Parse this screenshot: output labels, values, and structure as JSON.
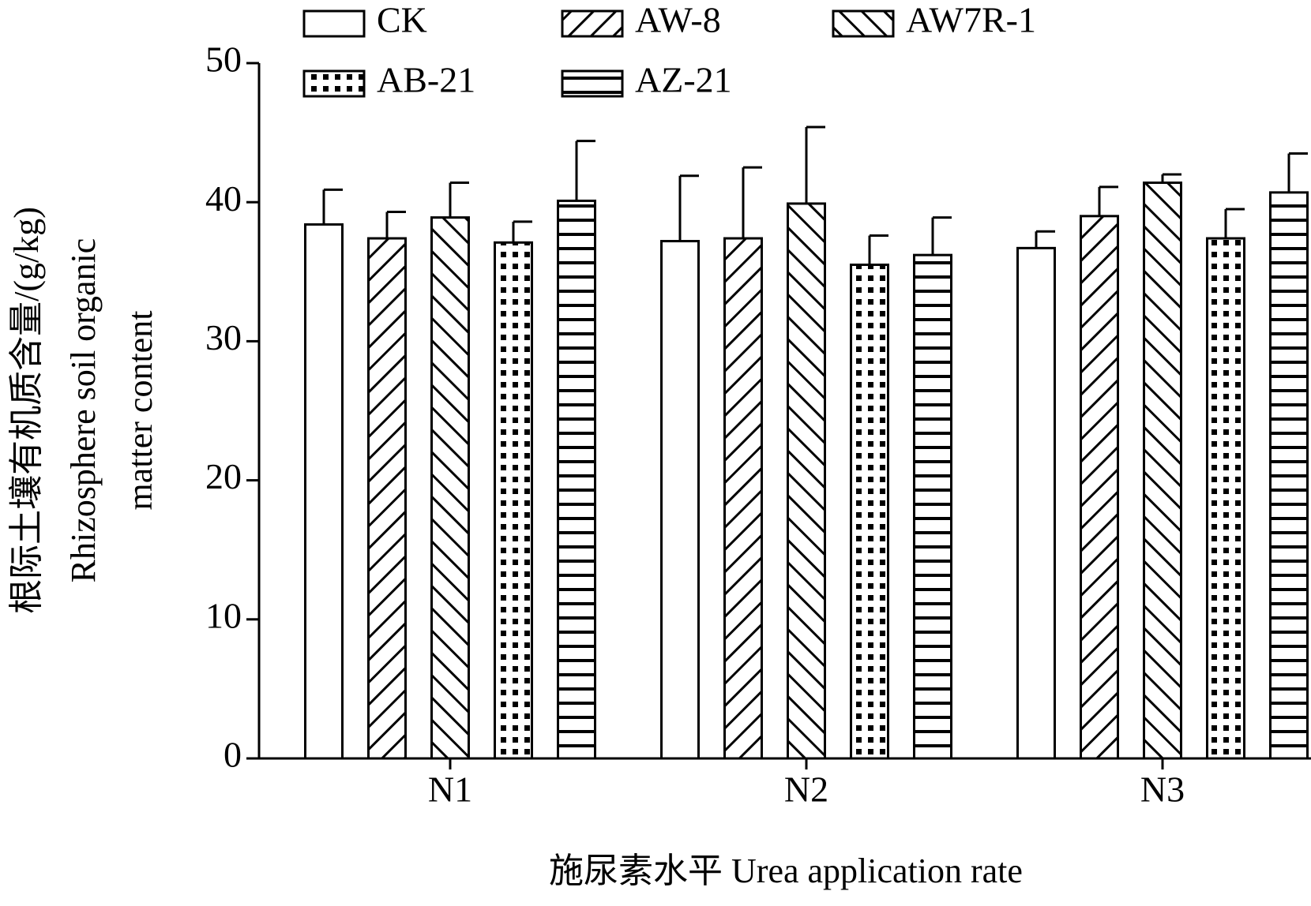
{
  "chart_data": {
    "type": "bar",
    "ylabel": [
      "根际土壤有机质含量/(g/kg)",
      "Rhizosphere soil organic",
      "matter content"
    ],
    "xlabel": "施尿素水平  Urea application rate",
    "categories": [
      "N1",
      "N2",
      "N3"
    ],
    "series": [
      {
        "name": "CK",
        "color": "#000000",
        "pattern": "none",
        "values": [
          38.4,
          37.2,
          36.7
        ],
        "errors": [
          2.5,
          4.7,
          1.2
        ]
      },
      {
        "name": "AW-8",
        "color": "#000000",
        "pattern": "diagonal-up",
        "values": [
          37.4,
          37.4,
          39.0
        ],
        "errors": [
          1.9,
          5.1,
          2.1
        ]
      },
      {
        "name": "AW7R-1",
        "color": "#000000",
        "pattern": "diagonal-down",
        "values": [
          38.9,
          39.9,
          41.4
        ],
        "errors": [
          2.5,
          5.5,
          0.6
        ]
      },
      {
        "name": "AB-21",
        "color": "#000000",
        "pattern": "dots",
        "values": [
          37.1,
          35.5,
          37.4
        ],
        "errors": [
          1.5,
          2.1,
          2.1
        ]
      },
      {
        "name": "AZ-21",
        "color": "#000000",
        "pattern": "horizontal",
        "values": [
          40.1,
          36.2,
          40.7
        ],
        "errors": [
          4.3,
          2.7,
          2.8
        ]
      }
    ],
    "ylim": [
      0,
      50
    ],
    "yticks": [
      0,
      10,
      20,
      30,
      40,
      50
    ],
    "grid": false
  }
}
